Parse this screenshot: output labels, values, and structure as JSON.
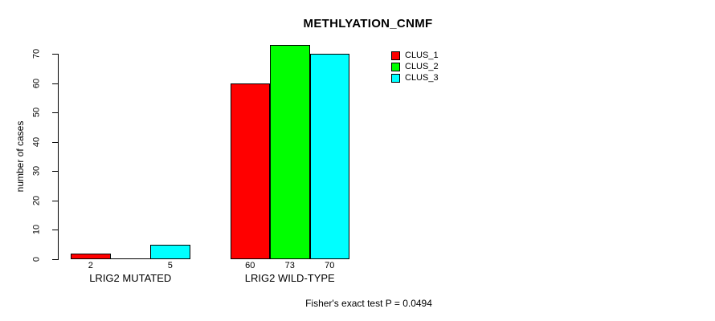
{
  "chart_data": {
    "type": "bar",
    "title": "METHLYATION_CNMF",
    "ylabel": "number of cases",
    "xlabel": "",
    "ylim": [
      0,
      70
    ],
    "yticks": [
      0,
      10,
      20,
      30,
      40,
      50,
      60,
      70
    ],
    "grid": false,
    "legend_position": "top-right",
    "categories": [
      "LRIG2 MUTATED",
      "LRIG2 WILD-TYPE"
    ],
    "series": [
      {
        "name": "CLUS_1",
        "color": "#ff0000",
        "values": [
          2,
          60
        ]
      },
      {
        "name": "CLUS_2",
        "color": "#00ff00",
        "values": [
          0,
          73
        ]
      },
      {
        "name": "CLUS_3",
        "color": "#00ffff",
        "values": [
          5,
          70
        ]
      }
    ],
    "bar_value_labels_shown": [
      "2",
      "5",
      "60",
      "73",
      "70"
    ],
    "zero_value_label_hidden": true,
    "annotation": "Fisher's exact test P = 0.0494",
    "colors": {
      "axis": "#000000",
      "text": "#000000",
      "background": "#ffffff"
    }
  }
}
